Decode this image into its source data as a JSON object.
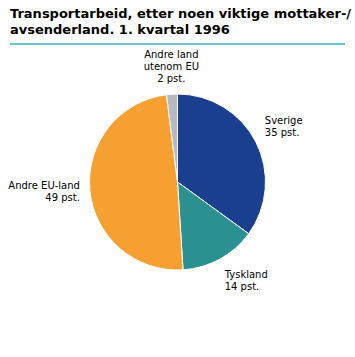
{
  "chart_data": {
    "type": "pie",
    "title": "Transportarbeid, etter noen viktige mottaker-/\navsenderland. 1. kvartal 1996",
    "categories": [
      "Sverige",
      "Tyskland",
      "Andre EU-land",
      "Andre land\nutenom EU"
    ],
    "values": [
      35,
      14,
      49,
      2
    ],
    "value_labels": [
      "35 pst.",
      "14 pst.",
      "49 pst.",
      "2 pst."
    ],
    "colors": [
      "#1a3f8f",
      "#2a9090",
      "#f5a030",
      "#b8b8c0"
    ],
    "data_labels": true
  }
}
